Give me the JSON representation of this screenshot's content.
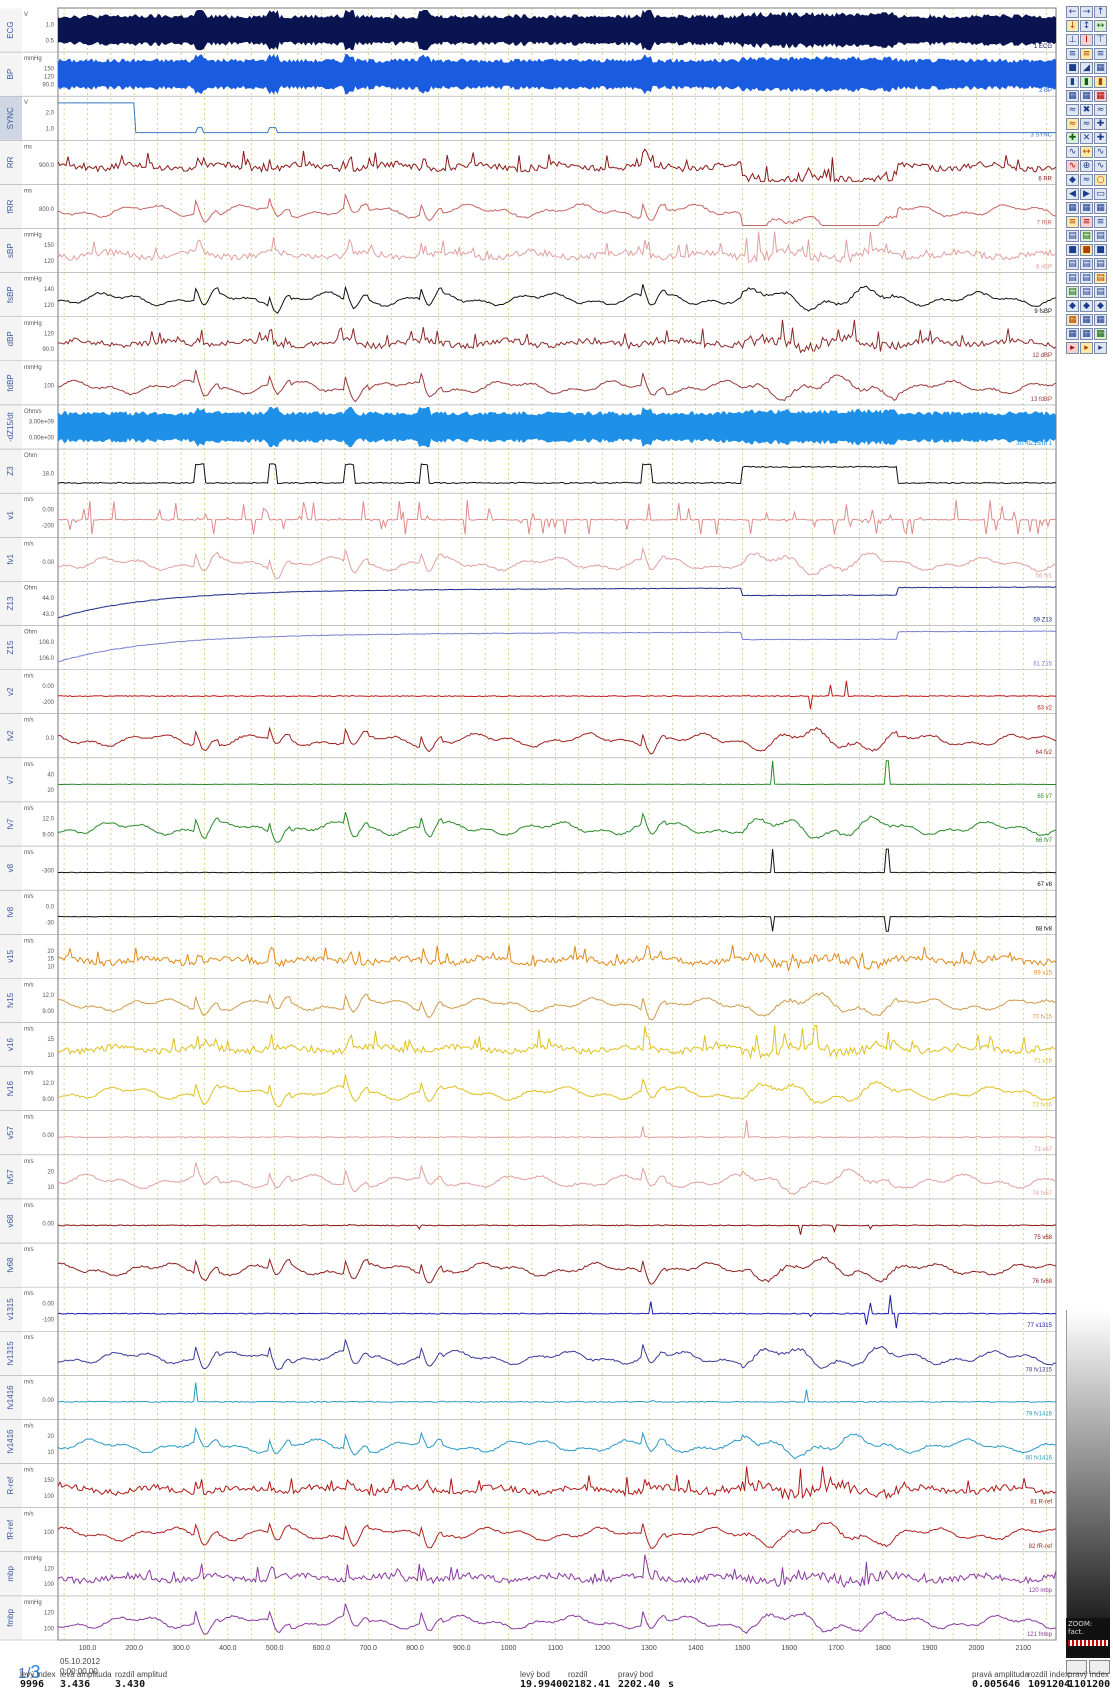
{
  "x_axis": {
    "ticks": [
      "100.0",
      "200.0",
      "300.0",
      "400.0",
      "500.0",
      "600.0",
      "700.0",
      "800.0",
      "900.0",
      "1000",
      "1100",
      "1200",
      "1300",
      "1400",
      "1500",
      "1600",
      "1700",
      "1800",
      "1900",
      "2000",
      "2100"
    ],
    "unit": "s",
    "tick_min": 100,
    "tick_max": 2100
  },
  "channels": [
    {
      "label": "ECG",
      "unit": "V",
      "ticks": [
        "1.0",
        "0.5"
      ],
      "right": "1 ECG",
      "color": "#0a1450",
      "style": "band-dark",
      "seed": 1
    },
    {
      "label": "BP",
      "unit": "mmHg",
      "ticks": [
        "150",
        "120",
        "90.0"
      ],
      "right": "2 BP",
      "color": "#1a5ce0",
      "style": "band",
      "seed": 2
    },
    {
      "label": "SYNC",
      "unit": "V",
      "ticks": [
        "2.0",
        "1.0"
      ],
      "right": "3 SYNC",
      "color": "#3a78c8",
      "style": "step",
      "seed": 3
    },
    {
      "label": "RR",
      "unit": "ms",
      "ticks": [
        "900.0"
      ],
      "right": "6 RR",
      "color": "#8c1a1a",
      "style": "noisy",
      "seed": 4
    },
    {
      "label": "fRR",
      "unit": "ms",
      "ticks": [
        "800.0"
      ],
      "right": "7 fRR",
      "color": "#c86464",
      "style": "smooth",
      "seed": 5
    },
    {
      "label": "sBP",
      "unit": "mmHg",
      "ticks": [
        "150",
        "120"
      ],
      "right": "8 sBP",
      "color": "#e0a0a0",
      "style": "noisy",
      "seed": 6
    },
    {
      "label": "fsBP",
      "unit": "mmHg",
      "ticks": [
        "140",
        "120"
      ],
      "right": "9 fsBP",
      "color": "#111111",
      "style": "smooth",
      "seed": 7
    },
    {
      "label": "dBP",
      "unit": "mmHg",
      "ticks": [
        "120",
        "90.0"
      ],
      "right": "12 dBP",
      "color": "#8c2a2a",
      "style": "noisy",
      "seed": 8
    },
    {
      "label": "fdBP",
      "unit": "mmHg",
      "ticks": [
        "100"
      ],
      "right": "13 fdBP",
      "color": "#9c3a3a",
      "style": "smooth",
      "seed": 9
    },
    {
      "label": "-dZ15/dt",
      "unit": "Ohm/s",
      "ticks": [
        "3.00e+09",
        "0.00e+00"
      ],
      "right": "30 -dZ15/dt 1",
      "color": "#1e90e8",
      "style": "band",
      "seed": 10
    },
    {
      "label": "Z3",
      "unit": "Ohm",
      "ticks": [
        "18.0"
      ],
      "right": "",
      "color": "#111111",
      "style": "plateau",
      "seed": 11
    },
    {
      "label": "v1",
      "unit": "m/s",
      "ticks": [
        "0.00",
        "-200"
      ],
      "right": "",
      "color": "#e08a8a",
      "style": "spikes",
      "seed": 12
    },
    {
      "label": "fv1",
      "unit": "m/s",
      "ticks": [
        "0.00"
      ],
      "right": "56 fv1",
      "color": "#e0a0a0",
      "style": "smooth",
      "seed": 13
    },
    {
      "label": "Z13",
      "unit": "Ohm",
      "ticks": [
        "44.0",
        "43.0"
      ],
      "right": "59 Z13",
      "color": "#1a2a8c",
      "style": "decay",
      "seed": 14
    },
    {
      "label": "Z15",
      "unit": "Ohm",
      "ticks": [
        "108.0",
        "106.0"
      ],
      "right": "61 Z15",
      "color": "#7a80d0",
      "style": "decay",
      "seed": 15
    },
    {
      "label": "v2",
      "unit": "m/s",
      "ticks": [
        "0.00",
        "-200"
      ],
      "right": "63 v2",
      "color": "#c01818",
      "style": "spikes-sparse",
      "seed": 16
    },
    {
      "label": "fv2",
      "unit": "m/s",
      "ticks": [
        "0.0"
      ],
      "right": "64 fv2",
      "color": "#a02020",
      "style": "smooth",
      "seed": 17
    },
    {
      "label": "v7",
      "unit": "m/s",
      "ticks": [
        "40",
        "20"
      ],
      "right": "65 v7",
      "color": "#2a8a2a",
      "style": "flat-spike",
      "seed": 18
    },
    {
      "label": "fv7",
      "unit": "m/s",
      "ticks": [
        "12.0",
        "9.00"
      ],
      "right": "66 fv7",
      "color": "#2a8a2a",
      "style": "smooth",
      "seed": 19
    },
    {
      "label": "v8",
      "unit": "m/s",
      "ticks": [
        "-300"
      ],
      "right": "67 v8",
      "color": "#111111",
      "style": "flat-spike",
      "seed": 20
    },
    {
      "label": "fv8",
      "unit": "m/s",
      "ticks": [
        "0.0",
        "-30"
      ],
      "right": "68 fv8",
      "color": "#111111",
      "style": "flat-spike",
      "seed": 21
    },
    {
      "label": "v15",
      "unit": "m/s",
      "ticks": [
        "20",
        "15",
        "10"
      ],
      "right": "69 v15",
      "color": "#e08a1a",
      "style": "noisy",
      "seed": 22
    },
    {
      "label": "fv15",
      "unit": "m/s",
      "ticks": [
        "12.0",
        "9.00"
      ],
      "right": "70 fv15",
      "color": "#d09a4a",
      "style": "smooth",
      "seed": 23
    },
    {
      "label": "v16",
      "unit": "m/s",
      "ticks": [
        "15",
        "10"
      ],
      "right": "71 v16",
      "color": "#e0c020",
      "style": "noisy",
      "seed": 24
    },
    {
      "label": "fv16",
      "unit": "m/s",
      "ticks": [
        "12.0",
        "9.00"
      ],
      "right": "72 fv16",
      "color": "#e0c020",
      "style": "smooth",
      "seed": 25
    },
    {
      "label": "v57",
      "unit": "m/s",
      "ticks": [
        "0.00"
      ],
      "right": "73 v57",
      "color": "#e09a9a",
      "style": "spikes-sparse",
      "seed": 26
    },
    {
      "label": "fv57",
      "unit": "m/s",
      "ticks": [
        "20",
        "10"
      ],
      "right": "74 fv57",
      "color": "#e0a0a0",
      "style": "smooth",
      "seed": 27
    },
    {
      "label": "v68",
      "unit": "m/s",
      "ticks": [
        "0.00"
      ],
      "right": "75 v68",
      "color": "#8c1010",
      "style": "spikes-sparse",
      "seed": 28
    },
    {
      "label": "fv68",
      "unit": "m/s",
      "ticks": [],
      "right": "76 fv68",
      "color": "#8c2020",
      "style": "smooth",
      "seed": 29
    },
    {
      "label": "v1315",
      "unit": "m/s",
      "ticks": [
        "0.00",
        "-100"
      ],
      "right": "77 v1315",
      "color": "#1a1ab0",
      "style": "spikes-sparse",
      "seed": 30
    },
    {
      "label": "fv1315",
      "unit": "m/s",
      "ticks": [],
      "right": "78 fv1315",
      "color": "#3a3a9a",
      "style": "smooth",
      "seed": 31
    },
    {
      "label": "fv1416",
      "unit": "m/s",
      "ticks": [
        "0.00"
      ],
      "right": "79 fv1416",
      "color": "#2a9ac8",
      "style": "spikes-sparse",
      "seed": 32
    },
    {
      "label": "fv1416",
      "unit": "m/s",
      "ticks": [
        "20",
        "10"
      ],
      "right": "80 fv1416",
      "color": "#2a9ac8",
      "style": "smooth",
      "seed": 33
    },
    {
      "label": "R-ref",
      "unit": "m/s",
      "ticks": [
        "150",
        "100"
      ],
      "right": "81 R-ref",
      "color": "#b01818",
      "style": "noisy",
      "seed": 34
    },
    {
      "label": "fR-ref",
      "unit": "m/s",
      "ticks": [
        "100"
      ],
      "right": "82 fR-ref",
      "color": "#b02020",
      "style": "smooth",
      "seed": 35
    },
    {
      "label": "mbp",
      "unit": "mmHg",
      "ticks": [
        "120",
        "100"
      ],
      "right": "120 mbp",
      "color": "#8a3aa0",
      "style": "noisy",
      "seed": 36
    },
    {
      "label": "fmbp",
      "unit": "mmHg",
      "ticks": [
        "120",
        "100"
      ],
      "right": "121 fmbp",
      "color": "#8a3aa0",
      "style": "smooth",
      "seed": 37
    }
  ],
  "footer": {
    "date": "05.10.2012",
    "time": "0:00:00.00",
    "left_index_label": "levý index",
    "left_index": "9996",
    "left_amp_label": "levá amplituda",
    "left_amp": "3.436",
    "diff_amp_label": "rozdíl amplitud",
    "diff_amp": "3.430",
    "left_point_label": "levý bod",
    "left_point": "19.99400",
    "diff_label": "rozdíl",
    "diff": "2182.41",
    "right_point_label": "pravý bod",
    "right_point": "2202.40",
    "right_amp_label": "pravá amplituda",
    "right_amp": "0.005646",
    "right_diff_label": "rozdíl index",
    "right_diff": "1091204",
    "right_index_label": "pravý index",
    "right_index": "1101200",
    "unit_s": "s"
  },
  "page": {
    "current": "1/",
    "total": "3"
  },
  "toolbar": {
    "buttons": [
      "←",
      "→",
      "↑",
      "↓",
      "↕",
      "↔",
      "⊥",
      "I",
      "⊤",
      "≡",
      "≡",
      "≡",
      "■",
      "◢",
      "▦",
      "▮",
      "▮",
      "▮",
      "▦",
      "▦",
      "▦",
      "≈",
      "✖",
      "≈",
      "≈",
      "≈",
      "✚",
      "✚",
      "✕",
      "✚",
      "∿",
      "↔",
      "∿",
      "∿",
      "⊕",
      "∿",
      "◆",
      "≈",
      "○",
      "◀",
      "▶",
      "▭",
      "▦",
      "▦",
      "▦",
      "≡",
      "≡",
      "≡",
      "▤",
      "▤",
      "▤",
      "■",
      "■",
      "■",
      "▤",
      "▤",
      "▤",
      "▤",
      "▤",
      "▤",
      "▤",
      "▤",
      "▤",
      "◆",
      "◆",
      "◆",
      "▦",
      "▦",
      "▦",
      "▦",
      "▦",
      "▦",
      "▸",
      "▸",
      "▸"
    ]
  },
  "zoom": {
    "label": "ZOOM: fact."
  }
}
